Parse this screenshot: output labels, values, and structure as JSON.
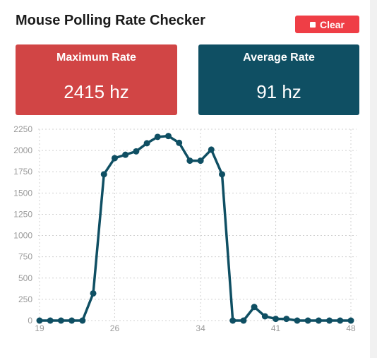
{
  "header": {
    "title": "Mouse Polling Rate Checker",
    "clear_label": "Clear",
    "clear_icon": "stop-icon",
    "accent_color": "#ef3e46"
  },
  "stats": {
    "max_label": "Maximum Rate",
    "max_value": "2415 hz",
    "max_color": "#d14545",
    "avg_label": "Average Rate",
    "avg_value": "91 hz",
    "avg_color": "#0f4f63"
  },
  "chart_data": {
    "type": "line",
    "title": "",
    "xlabel": "",
    "ylabel": "",
    "x_ticks": [
      "19",
      "26",
      "34",
      "41",
      "48"
    ],
    "y_ticks": [
      "0",
      "250",
      "500",
      "750",
      "1000",
      "1250",
      "1500",
      "1750",
      "2000",
      "2250"
    ],
    "xlim": [
      19,
      48
    ],
    "ylim": [
      0,
      2250
    ],
    "grid": true,
    "line_color": "#0f4f63",
    "series": [
      {
        "x": [
          19,
          20,
          21,
          22,
          23,
          24,
          25,
          26,
          27,
          28,
          29,
          30,
          31,
          32,
          33,
          34,
          35,
          36,
          37,
          38,
          39,
          40,
          41,
          42,
          43,
          44,
          45,
          46,
          47,
          48
        ],
        "values": [
          0,
          0,
          0,
          0,
          0,
          320,
          1720,
          1910,
          1950,
          1990,
          2085,
          2160,
          2170,
          2090,
          1880,
          1880,
          2010,
          1720,
          0,
          0,
          160,
          50,
          20,
          20,
          0,
          0,
          0,
          0,
          0,
          0
        ]
      }
    ]
  }
}
